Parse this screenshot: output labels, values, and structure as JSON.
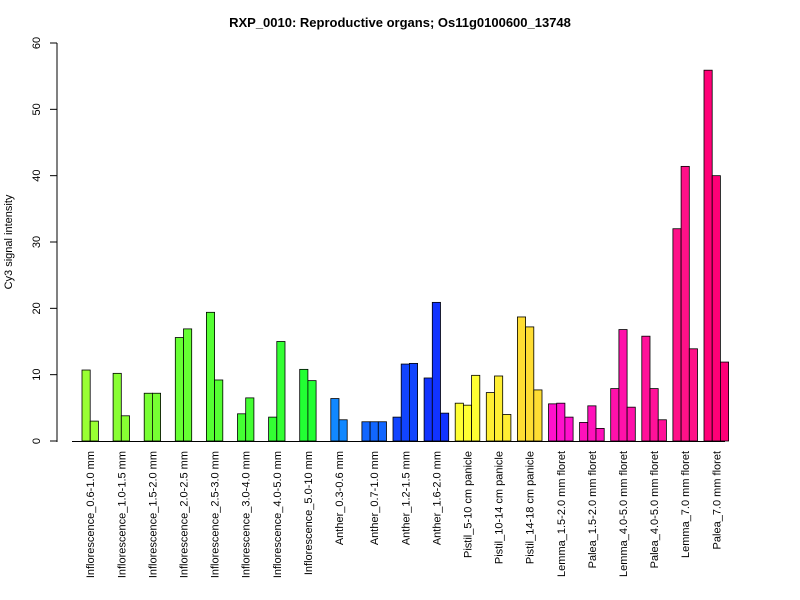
{
  "chart_data": {
    "type": "bar",
    "title": "RXP_0010: Reproductive organs; Os11g0100600_13748",
    "xlabel": "",
    "ylabel": "Cy3 signal intensity",
    "ylim": [
      0,
      60
    ],
    "yticks": [
      "0",
      "10",
      "20",
      "30",
      "40",
      "50",
      "60"
    ],
    "grid": false,
    "legend": "none",
    "groups": [
      {
        "label": "Inflorescence_0.6-1.0 mm",
        "color": "#99ff33",
        "values": [
          10.7,
          3.0
        ]
      },
      {
        "label": "Inflorescence_1.0-1.5 mm",
        "color": "#88ff33",
        "values": [
          10.2,
          3.8
        ]
      },
      {
        "label": "Inflorescence_1.5-2.0 mm",
        "color": "#77ff33",
        "values": [
          7.2,
          7.2
        ]
      },
      {
        "label": "Inflorescence_2.0-2.5 mm",
        "color": "#66ff33",
        "values": [
          15.6,
          16.9
        ]
      },
      {
        "label": "Inflorescence_2.5-3.0 mm",
        "color": "#55ff33",
        "values": [
          19.4,
          9.2
        ]
      },
      {
        "label": "Inflorescence_3.0-4.0 mm",
        "color": "#44ff33",
        "values": [
          4.1,
          6.5
        ]
      },
      {
        "label": "Inflorescence_4.0-5.0 mm",
        "color": "#33ff33",
        "values": [
          3.6,
          15.0
        ]
      },
      {
        "label": "Inflorescence_5.0-10 mm",
        "color": "#22ff33",
        "values": [
          10.8,
          9.1
        ]
      },
      {
        "label": "Anther_0.3-0.6 mm",
        "color": "#1188ff",
        "values": [
          6.4,
          3.2
        ]
      },
      {
        "label": "Anther_0.7-1.0 mm",
        "color": "#1166ff",
        "values": [
          2.9,
          2.9,
          2.9
        ]
      },
      {
        "label": "Anther_1.2-1.5 mm",
        "color": "#1144ff",
        "values": [
          3.6,
          11.6,
          11.7
        ]
      },
      {
        "label": "Anther_1.6-2.0 mm",
        "color": "#1133ff",
        "values": [
          9.5,
          20.9,
          4.2
        ]
      },
      {
        "label": "Pistil_5-10 cm panicle",
        "color": "#ffff33",
        "values": [
          5.7,
          5.4,
          9.9
        ]
      },
      {
        "label": "Pistil_10-14 cm panicle",
        "color": "#ffee33",
        "values": [
          7.3,
          9.8,
          4.0
        ]
      },
      {
        "label": "Pistil_14-18 cm panicle",
        "color": "#ffdd33",
        "values": [
          18.7,
          17.2,
          7.7
        ]
      },
      {
        "label": "Lemma_1.5-2.0 mm floret",
        "color": "#ff11cc",
        "values": [
          5.6,
          5.7,
          3.6
        ]
      },
      {
        "label": "Palea_1.5-2.0 mm floret",
        "color": "#ff11bb",
        "values": [
          2.8,
          5.3,
          1.9
        ]
      },
      {
        "label": "Lemma_4.0-5.0 mm floret",
        "color": "#ff11aa",
        "values": [
          7.9,
          16.8,
          5.1
        ]
      },
      {
        "label": "Palea_4.0-5.0 mm floret",
        "color": "#ff1199",
        "values": [
          15.8,
          7.9,
          3.2
        ]
      },
      {
        "label": "Lemma_7.0 mm floret",
        "color": "#ff1188",
        "values": [
          32.0,
          41.4,
          13.9
        ]
      },
      {
        "label": "Palea_7.0 mm floret",
        "color": "#ff0077",
        "values": [
          55.9,
          40.0,
          11.9
        ]
      }
    ]
  }
}
